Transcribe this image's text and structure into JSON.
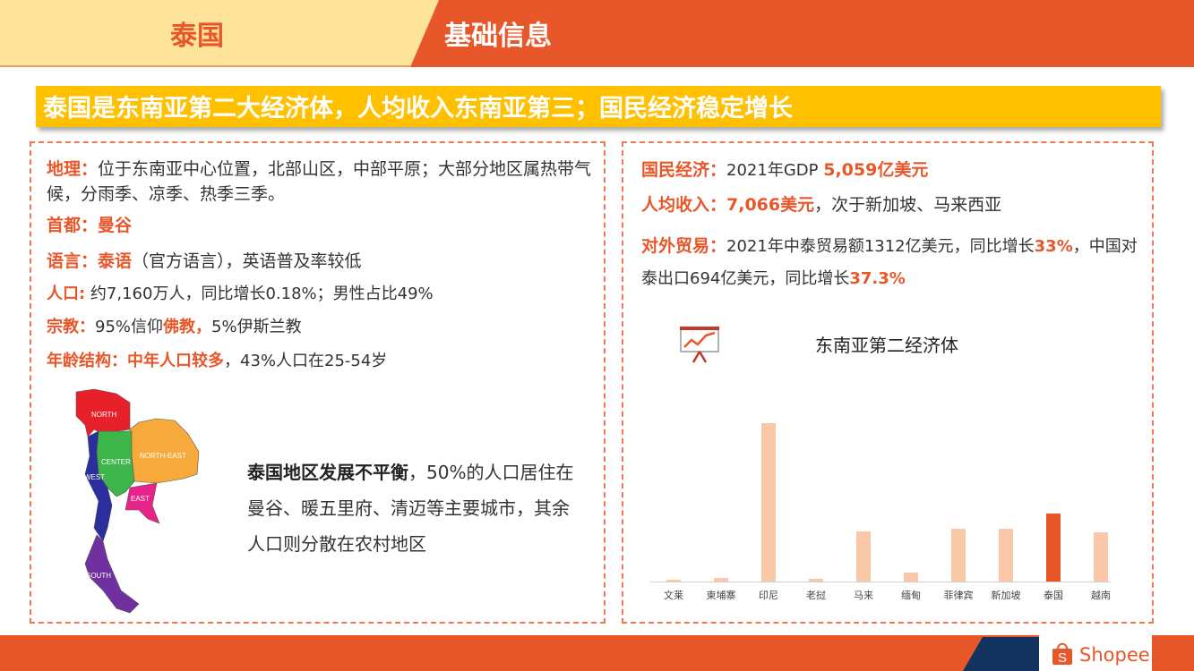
{
  "header": {
    "country": "泰国",
    "section": "基础信息"
  },
  "banner": "泰国是东南亚第二大经济体，人均收入东南亚第三；国民经济稳定增长",
  "left": {
    "geo_label": "地理：",
    "geo_text": "位于东南亚中心位置，北部山区，中部平原；大部分地区属热带气候，分雨季、凉季、热季三季。",
    "capital_label": "首都：",
    "capital_value": "曼谷",
    "lang_label": "语言：",
    "lang_value": "泰语",
    "lang_text": "（官方语言），英语普及率较低",
    "pop_label": "人口:",
    "pop_text": " 约7,160万人，同比增长0.18%；男性占比49%",
    "rel_label": "宗教：",
    "rel_text1": "95%信仰",
    "rel_value": "佛教",
    "rel_sep": "，",
    "rel_text2": "5%伊斯兰教",
    "age_label": "年龄结构：",
    "age_value": "中年人口较多",
    "age_text": "，43%人口在25-54岁",
    "map_regions": {
      "north": "NORTH",
      "northeast": "NORTH-EAST",
      "center": "CENTER",
      "west": "WEST",
      "east": "EAST",
      "south": "SOUTH"
    },
    "map_text_bold": "泰国地区发展不平衡",
    "map_text": "，50%的人口居住在曼谷、暖五里府、清迈等主要城市，其余人口则分散在农村地区"
  },
  "right": {
    "econ_label": "国民经济：",
    "econ_text": "2021年GDP ",
    "econ_value": "5,059亿美元",
    "income_label": "人均收入：",
    "income_value": "7,066美元",
    "income_text": "，次于新加坡、马来西亚",
    "trade_label": "对外贸易：",
    "trade_text1": "2021年中泰贸易额1312亿美元，同比增长",
    "trade_v1": "33%",
    "trade_text2": "，中国对泰出口694亿美元，同比增长",
    "trade_v2": "37.3%",
    "chart_icon": "presentation-chart-icon"
  },
  "chart_data": {
    "type": "bar",
    "title": "东南亚第二经济体",
    "categories": [
      "文莱",
      "柬埔寨",
      "印尼",
      "老挝",
      "马来",
      "缅甸",
      "菲律宾",
      "新加坡",
      "泰国",
      "越南"
    ],
    "values": [
      14,
      27,
      1186,
      19,
      373,
      65,
      394,
      397,
      506,
      366
    ],
    "highlight": "泰国",
    "colors": {
      "default": "#F8C8A8",
      "highlight": "#E8572A"
    },
    "grid": false
  },
  "footer": {
    "logo": "Shopee",
    "colors": {
      "orange": "#E8572A",
      "navy": "#12335E"
    }
  }
}
